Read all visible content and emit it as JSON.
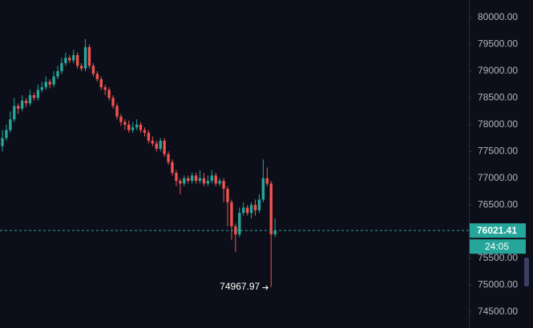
{
  "chart_data": {
    "type": "candlestick",
    "open": [
      77600,
      77750,
      77900,
      78100,
      78350,
      78300,
      78450,
      78400,
      78550,
      78500,
      78650,
      78700,
      78800,
      78750,
      78900,
      79000,
      79150,
      79250,
      79200,
      79300,
      79100,
      79050,
      79450,
      79100,
      78950,
      78850,
      78700,
      78650,
      78500,
      78350,
      78150,
      78050,
      78000,
      77900,
      77950,
      78000,
      77900,
      77850,
      77700,
      77650,
      77550,
      77700,
      77450,
      77300,
      77100,
      76950,
      76900,
      77000,
      76950,
      77050,
      76950,
      77000,
      76900,
      76950,
      77050,
      76900,
      76950,
      76800,
      76550,
      76100,
      75950,
      76350,
      76450,
      76350,
      76500,
      76400,
      76600,
      77000,
      76900,
      75950
    ],
    "high": [
      77900,
      78000,
      78250,
      78500,
      78400,
      78550,
      78500,
      78650,
      78600,
      78750,
      78800,
      78900,
      78850,
      79000,
      79100,
      79250,
      79350,
      79300,
      79400,
      79350,
      79150,
      79600,
      79500,
      79150,
      79000,
      78900,
      78750,
      78700,
      78550,
      78400,
      78200,
      78100,
      78080,
      78050,
      78100,
      78050,
      77950,
      77900,
      77780,
      77700,
      77750,
      77750,
      77500,
      77350,
      77150,
      77000,
      77050,
      77050,
      77100,
      77100,
      77150,
      77100,
      77050,
      77150,
      77100,
      77000,
      77000,
      76850,
      76600,
      76150,
      76450,
      76550,
      76500,
      76550,
      76600,
      76700,
      77350,
      77200,
      76950,
      76250
    ],
    "low": [
      77500,
      77700,
      77850,
      78050,
      78200,
      78250,
      78330,
      78350,
      78450,
      78450,
      78600,
      78650,
      78680,
      78700,
      78850,
      78950,
      79100,
      79150,
      79150,
      79050,
      79000,
      79000,
      79050,
      78900,
      78800,
      78650,
      78550,
      78450,
      78300,
      78100,
      77980,
      77900,
      77850,
      77850,
      77900,
      77850,
      77780,
      77650,
      77600,
      77500,
      77500,
      77400,
      77250,
      77050,
      76850,
      76700,
      76850,
      76900,
      76900,
      76900,
      76900,
      76850,
      76850,
      76900,
      76850,
      76850,
      76550,
      76100,
      75850,
      75620,
      75900,
      76300,
      76300,
      76250,
      76300,
      76350,
      76550,
      76850,
      74967.97,
      75900
    ],
    "close": [
      77750,
      77900,
      78100,
      78350,
      78300,
      78450,
      78400,
      78550,
      78500,
      78650,
      78700,
      78800,
      78750,
      78900,
      79000,
      79150,
      79250,
      79200,
      79300,
      79100,
      79050,
      79450,
      79100,
      78950,
      78850,
      78700,
      78650,
      78500,
      78350,
      78150,
      78050,
      78000,
      77900,
      77950,
      78000,
      77900,
      77850,
      77700,
      77650,
      77550,
      77700,
      77450,
      77300,
      77100,
      76950,
      76900,
      77000,
      76950,
      77050,
      76950,
      77000,
      76900,
      76950,
      77050,
      76900,
      76950,
      76800,
      76550,
      76100,
      75950,
      76350,
      76450,
      76350,
      76500,
      76400,
      76600,
      77000,
      76900,
      75950,
      76021.41
    ],
    "up_color": "#26a69a",
    "down_color": "#ef5350",
    "ylim": [
      74200,
      80330
    ],
    "yticks": [
      {
        "value": 80000,
        "label": "80000.00"
      },
      {
        "value": 79500,
        "label": "79500.00"
      },
      {
        "value": 79000,
        "label": "79000.00"
      },
      {
        "value": 78500,
        "label": "78500.00"
      },
      {
        "value": 78000,
        "label": "78000.00"
      },
      {
        "value": 77500,
        "label": "77500.00"
      },
      {
        "value": 77000,
        "label": "77000.00"
      },
      {
        "value": 76500,
        "label": "76500.00"
      },
      {
        "value": 76000,
        "label": "76000.00"
      },
      {
        "value": 75500,
        "label": "75500.00"
      },
      {
        "value": 75000,
        "label": "75000.00"
      },
      {
        "value": 74500,
        "label": "74500.00"
      }
    ],
    "countdown": "24:05"
  }
}
